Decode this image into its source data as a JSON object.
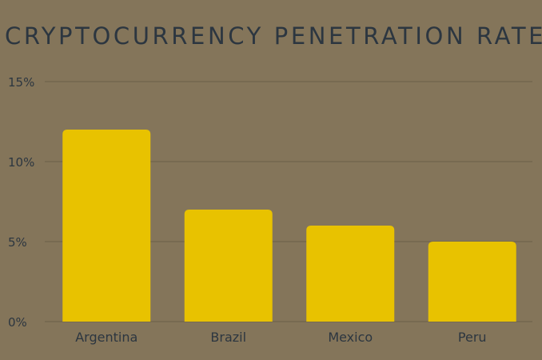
{
  "chart_data": {
    "type": "bar",
    "title": "CRYPTOCURRENCY PENETRATION RATES",
    "xlabel": "",
    "ylabel": "",
    "categories": [
      "Argentina",
      "Brazil",
      "Mexico",
      "Peru"
    ],
    "values": [
      12,
      7,
      6,
      5
    ],
    "value_unit": "%",
    "ylim": [
      0,
      15
    ],
    "yticks": [
      0,
      5,
      10,
      15
    ],
    "ytick_labels": [
      "0%",
      "5%",
      "10%",
      "15%"
    ],
    "grid": true,
    "legend": "none"
  },
  "colors": {
    "background": "#84755a",
    "bar": "#e8c200",
    "text": "#2c3640",
    "grid": "#6a5e48"
  }
}
